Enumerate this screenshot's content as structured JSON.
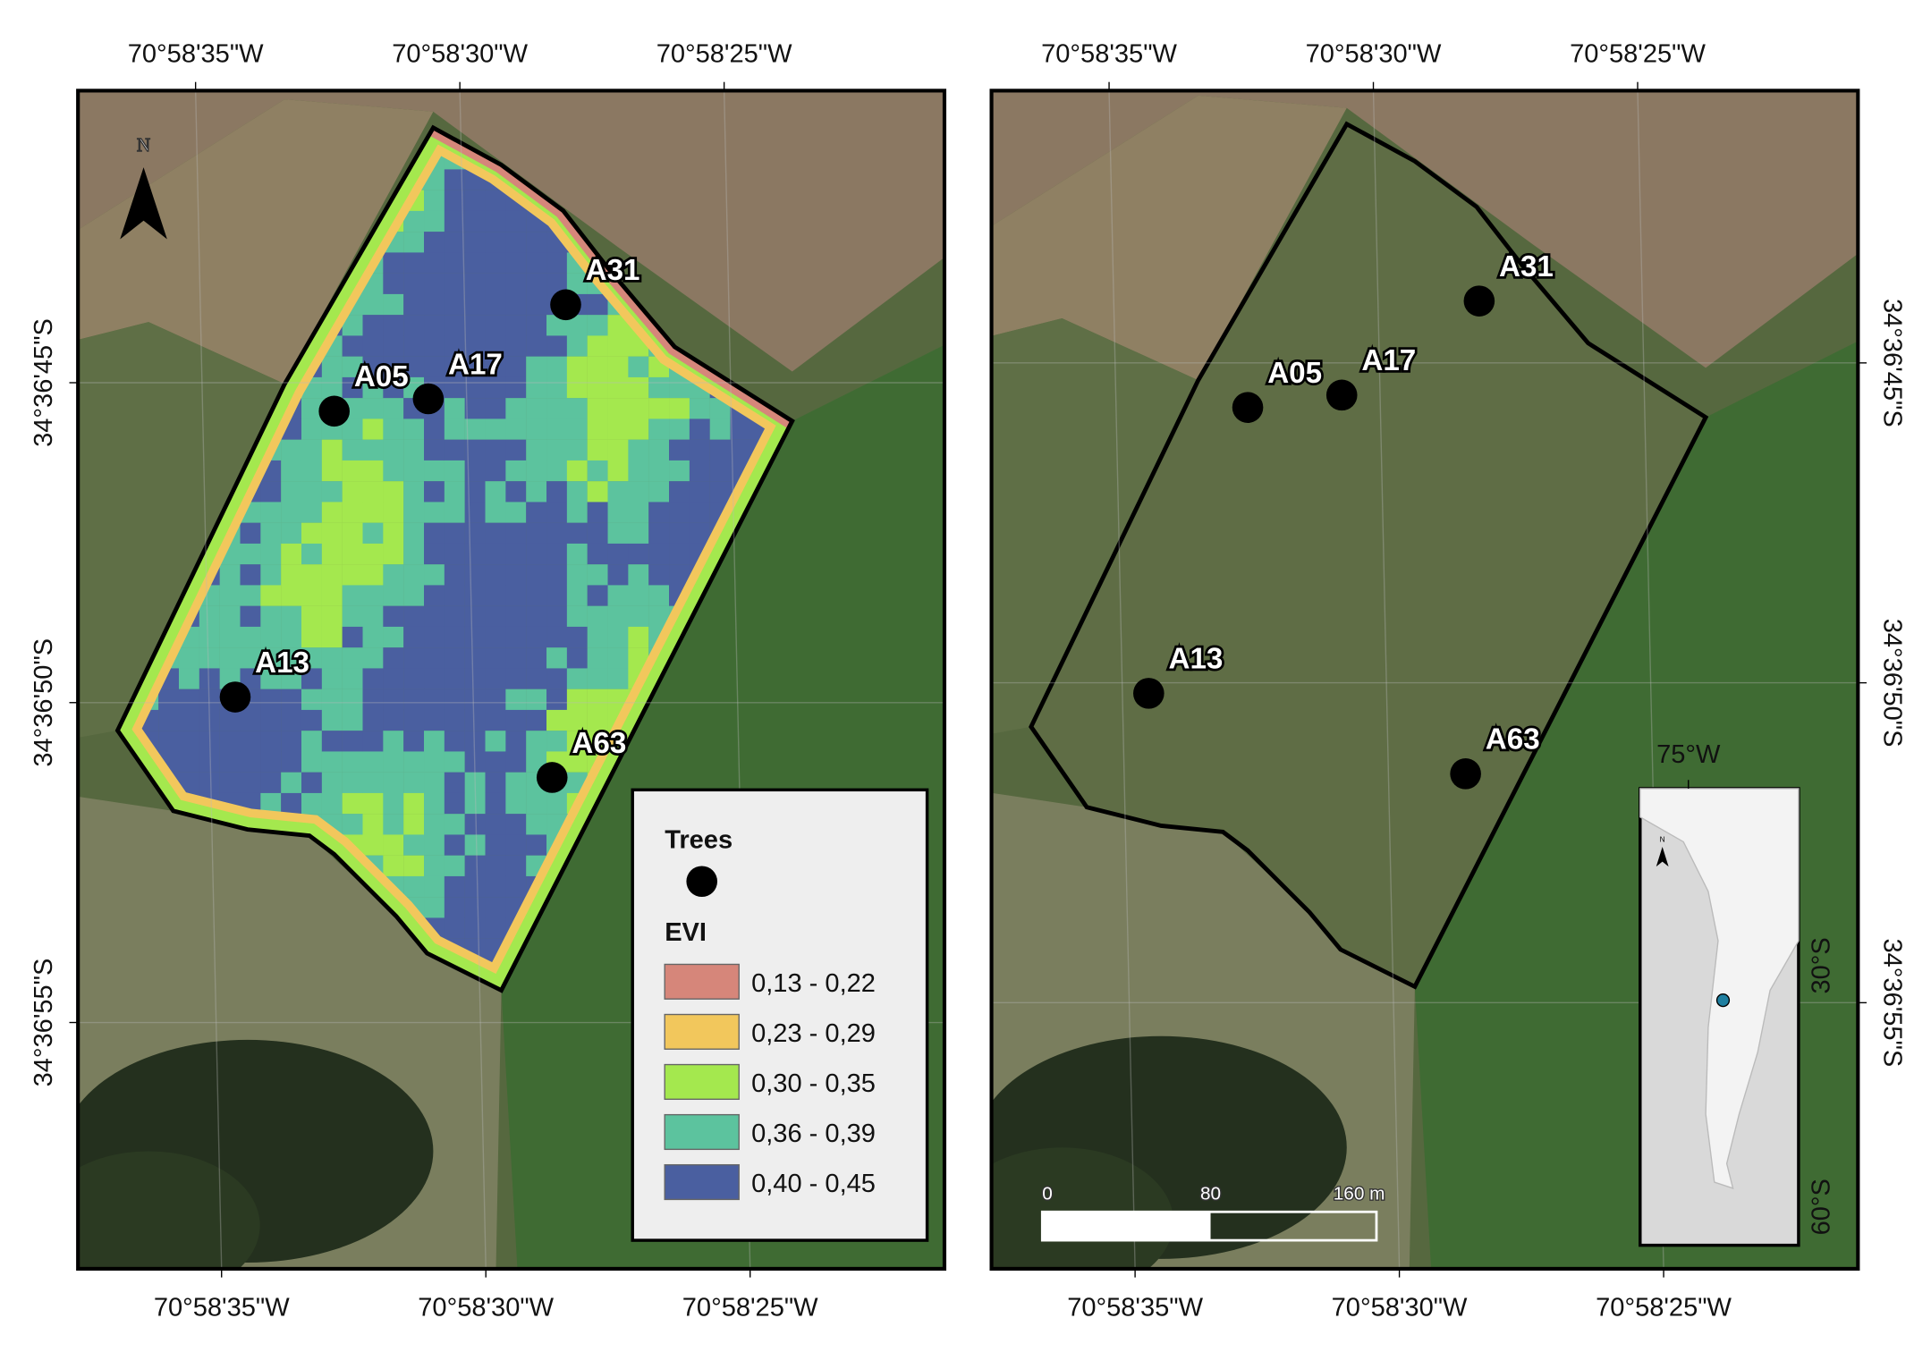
{
  "panels": [
    {
      "top_labels": [
        "70°58'35\"W",
        "70°58'30\"W",
        "70°58'25\"W"
      ],
      "bottom_labels": [
        "70°58'35\"W",
        "70°58'30\"W",
        "70°58'25\"W"
      ],
      "side_labels": [
        "34°36'45\"S",
        "34°36'50\"S",
        "34°36'55\"S"
      ]
    },
    {
      "top_labels": [
        "70°58'35\"W",
        "70°58'30\"W",
        "70°58'25\"W"
      ],
      "bottom_labels": [
        "70°58'35\"W",
        "70°58'30\"W",
        "70°58'25\"W"
      ],
      "side_labels": [
        "34°36'45\"S",
        "34°36'50\"S",
        "34°36'55\"S"
      ]
    }
  ],
  "trees": [
    "A31",
    "A05",
    "A17",
    "A13",
    "A63"
  ],
  "north": "N",
  "legend": {
    "trees_title": "Trees",
    "evi_title": "EVI",
    "classes": [
      {
        "label": "0,13 - 0,22",
        "color": "#d6867a"
      },
      {
        "label": "0,23 - 0,29",
        "color": "#f2c75c"
      },
      {
        "label": "0,30 - 0,35",
        "color": "#a4e84e"
      },
      {
        "label": "0,36 - 0,39",
        "color": "#5cc39e"
      },
      {
        "label": "0,40 - 0,45",
        "color": "#4a5fa0"
      }
    ]
  },
  "scale_bar": [
    "0",
    "80",
    "160 m"
  ],
  "inset": {
    "lon_label": "75°W",
    "lat_labels": [
      "30°S",
      "60°S"
    ],
    "north": "N"
  }
}
